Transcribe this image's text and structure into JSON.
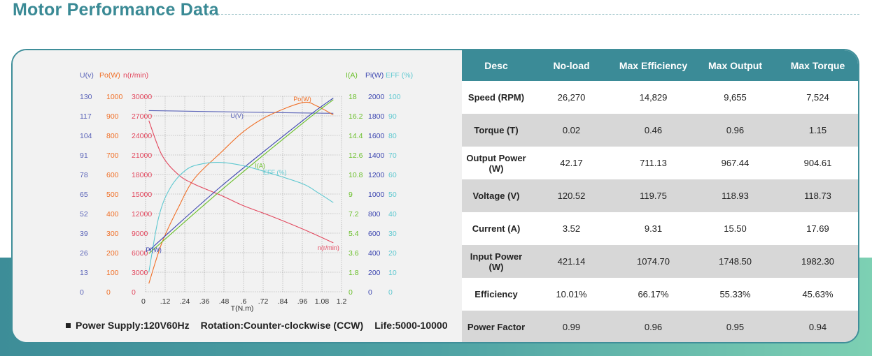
{
  "page": {
    "title": "Motor Performance Data",
    "colors": {
      "accent": "#3a8a95",
      "band_start": "#3d8d98",
      "band_end": "#7dd0b3"
    }
  },
  "footnote": {
    "supply": "Power Supply:120V60Hz",
    "rotation": "Rotation:Counter-clockwise  (CCW)",
    "life": "Life:5000-10000"
  },
  "table": {
    "headers": [
      "Desc",
      "No-load",
      "Max Efficiency",
      "Max Output",
      "Max Torque"
    ],
    "rows": [
      {
        "label": "Speed (RPM)",
        "values": [
          "26,270",
          "14,829",
          "9,655",
          "7,524"
        ]
      },
      {
        "label": "Torque (T)",
        "values": [
          "0.02",
          "0.46",
          "0.96",
          "1.15"
        ]
      },
      {
        "label": "Output Power (W)",
        "values": [
          "42.17",
          "711.13",
          "967.44",
          "904.61"
        ]
      },
      {
        "label": "Voltage (V)",
        "values": [
          "120.52",
          "119.75",
          "118.93",
          "118.73"
        ]
      },
      {
        "label": "Current (A)",
        "values": [
          "3.52",
          "9.31",
          "15.50",
          "17.69"
        ]
      },
      {
        "label": "Input Power (W)",
        "values": [
          "421.14",
          "1074.70",
          "1748.50",
          "1982.30"
        ]
      },
      {
        "label": "Efficiency",
        "values": [
          "10.01%",
          "66.17%",
          "55.33%",
          "45.63%"
        ]
      },
      {
        "label": "Power Factor",
        "values": [
          "0.99",
          "0.96",
          "0.95",
          "0.94"
        ]
      }
    ]
  },
  "chart_data": {
    "type": "line",
    "xlabel": "T(N.m)",
    "x_ticks": [
      "0",
      ".12",
      ".24",
      ".36",
      ".48",
      ".6",
      ".72",
      ".84",
      ".96",
      "1.08",
      "1.2"
    ],
    "xlim": [
      0,
      1.2
    ],
    "grid": true,
    "axes": [
      {
        "id": "U",
        "label": "U(v)",
        "color": "#5a63b8",
        "side": "left",
        "ticks": [
          "0",
          "13",
          "26",
          "39",
          "52",
          "65",
          "78",
          "91",
          "104",
          "117",
          "130"
        ],
        "range": [
          0,
          130
        ]
      },
      {
        "id": "Po",
        "label": "Po(W)",
        "color": "#f07028",
        "side": "left",
        "ticks": [
          "0",
          "100",
          "200",
          "300",
          "400",
          "500",
          "600",
          "700",
          "800",
          "900",
          "1000"
        ],
        "range": [
          0,
          1000
        ]
      },
      {
        "id": "n",
        "label": "n(r/min)",
        "color": "#e2485e",
        "side": "left",
        "ticks": [
          "0",
          "3000",
          "6000",
          "9000",
          "12000",
          "15000",
          "18000",
          "21000",
          "24000",
          "27000",
          "30000"
        ],
        "range": [
          0,
          30000
        ]
      },
      {
        "id": "I",
        "label": "I(A)",
        "color": "#6abf2a",
        "side": "right",
        "ticks": [
          "0",
          "1.8",
          "3.6",
          "5.4",
          "7.2",
          "9",
          "10.8",
          "12.6",
          "14.4",
          "16.2",
          "18"
        ],
        "range": [
          0,
          18
        ]
      },
      {
        "id": "Pi",
        "label": "Pi(W)",
        "color": "#3c46b0",
        "side": "right",
        "ticks": [
          "0",
          "200",
          "400",
          "600",
          "800",
          "1000",
          "1200",
          "1400",
          "1600",
          "1800",
          "2000"
        ],
        "range": [
          0,
          2000
        ]
      },
      {
        "id": "EFF",
        "label": "EFF (%)",
        "color": "#5ec8d0",
        "side": "right",
        "ticks": [
          "0",
          "10",
          "20",
          "30",
          "40",
          "50",
          "60",
          "70",
          "80",
          "90",
          "100"
        ],
        "range": [
          0,
          100
        ]
      }
    ],
    "series": [
      {
        "name": "U(V)",
        "axis": "U",
        "x": [
          0.02,
          0.46,
          0.96,
          1.15
        ],
        "y": [
          120.52,
          119.75,
          118.93,
          118.73
        ]
      },
      {
        "name": "Po(W)",
        "axis": "Po",
        "x": [
          0.02,
          0.1,
          0.2,
          0.3,
          0.46,
          0.6,
          0.75,
          0.96,
          1.05,
          1.15
        ],
        "y": [
          42.17,
          250,
          430,
          580,
          711.13,
          820,
          900,
          967.44,
          950,
          904.61
        ]
      },
      {
        "name": "n(r/min)",
        "axis": "n",
        "x": [
          0.02,
          0.1,
          0.2,
          0.3,
          0.46,
          0.6,
          0.75,
          0.96,
          1.15
        ],
        "y": [
          26270,
          21000,
          18000,
          16500,
          14829,
          13200,
          11800,
          9655,
          7524
        ]
      },
      {
        "name": "I(A)",
        "axis": "I",
        "x": [
          0.02,
          0.46,
          0.96,
          1.15
        ],
        "y": [
          3.52,
          9.31,
          15.5,
          17.69
        ]
      },
      {
        "name": "Pi(W)",
        "axis": "Pi",
        "x": [
          0.02,
          0.46,
          0.96,
          1.15
        ],
        "y": [
          421.14,
          1074.7,
          1748.5,
          1982.3
        ]
      },
      {
        "name": "EFF (%)",
        "axis": "EFF",
        "x": [
          0.02,
          0.08,
          0.15,
          0.25,
          0.35,
          0.46,
          0.6,
          0.75,
          0.96,
          1.05,
          1.15
        ],
        "y": [
          10.01,
          38,
          53,
          62.5,
          65.5,
          66.17,
          64.5,
          61,
          55.33,
          51,
          45.63
        ]
      }
    ]
  }
}
